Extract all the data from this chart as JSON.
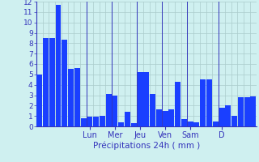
{
  "values": [
    5.0,
    8.5,
    8.5,
    11.7,
    8.3,
    5.5,
    5.6,
    0.8,
    0.9,
    0.9,
    1.0,
    3.1,
    3.0,
    0.4,
    1.4,
    0.3,
    5.2,
    5.2,
    3.1,
    1.6,
    1.5,
    1.6,
    4.3,
    0.7,
    0.5,
    0.4,
    4.5,
    4.5,
    0.5,
    1.8,
    2.0,
    1.0,
    2.8,
    2.8,
    2.9
  ],
  "day_labels": [
    "Lun",
    "Mer",
    "Jeu",
    "Ven",
    "Sam",
    "D"
  ],
  "day_positions": [
    8,
    12,
    16,
    20,
    24,
    29
  ],
  "xlabel": "Précipitations 24h ( mm )",
  "ylim": [
    0,
    12
  ],
  "yticks": [
    0,
    1,
    2,
    3,
    4,
    5,
    6,
    7,
    8,
    9,
    10,
    11,
    12
  ],
  "bar_color": "#1a3fff",
  "bg_color": "#cff0f0",
  "grid_color": "#aacccc",
  "axis_color": "#3333bb",
  "label_color": "#3333bb",
  "bar_width": 0.9
}
